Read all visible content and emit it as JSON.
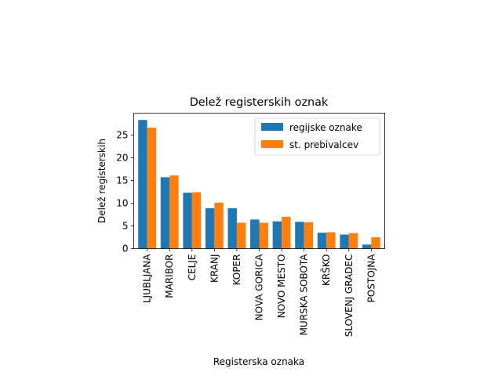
{
  "chart_data": {
    "type": "bar",
    "title": "Delež registerskih oznak",
    "xlabel": "Registerska oznaka",
    "ylabel": "Delež registerskih",
    "categories": [
      "LJUBLJANA",
      "MARIBOR",
      "CELJE",
      "KRANJ",
      "KOPER",
      "NOVA GORICA",
      "NOVO MESTO",
      "MURSKA SOBOTA",
      "KRŠKO",
      "SLOVENJ GRADEC",
      "POSTOJNA"
    ],
    "series": [
      {
        "name": "regijske oznake",
        "color": "#1f77b4",
        "values": [
          28.3,
          15.7,
          12.3,
          8.9,
          8.9,
          6.4,
          6.0,
          5.9,
          3.5,
          3.1,
          0.9
        ]
      },
      {
        "name": "st. prebivalcev",
        "color": "#ff7f0e",
        "values": [
          26.6,
          16.1,
          12.4,
          10.1,
          5.7,
          5.7,
          7.0,
          5.8,
          3.6,
          3.4,
          2.5
        ]
      }
    ],
    "ylim": [
      0,
      29.8
    ],
    "yticks": [
      "0",
      "5",
      "10",
      "15",
      "20",
      "25"
    ],
    "legend_position": "top-right",
    "grid": false
  }
}
